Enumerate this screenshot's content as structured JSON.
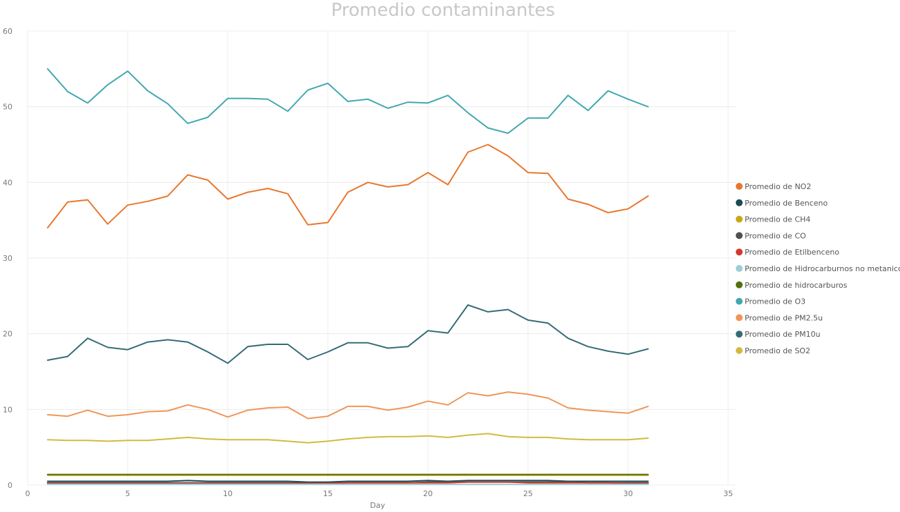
{
  "chart_data": {
    "type": "line",
    "title": "Promedio contaminantes",
    "xlabel": "Day",
    "ylabel": "",
    "xlim": [
      0,
      35
    ],
    "ylim": [
      0,
      60
    ],
    "xticks": [
      0,
      5,
      10,
      15,
      20,
      25,
      30,
      35
    ],
    "yticks": [
      0,
      10,
      20,
      30,
      40,
      50,
      60
    ],
    "grid": true,
    "legend_position": "right",
    "x": [
      1,
      2,
      3,
      4,
      5,
      6,
      7,
      8,
      9,
      10,
      11,
      12,
      13,
      14,
      15,
      16,
      17,
      18,
      19,
      20,
      21,
      22,
      23,
      24,
      25,
      26,
      27,
      28,
      29,
      30,
      31
    ],
    "series": [
      {
        "name": "Promedio de NO2",
        "color": "#E8772E",
        "values": [
          34.0,
          37.4,
          37.7,
          34.5,
          37.0,
          37.5,
          38.2,
          41.0,
          40.3,
          37.8,
          38.7,
          39.2,
          38.5,
          34.4,
          34.7,
          38.7,
          40.0,
          39.4,
          39.7,
          41.3,
          39.7,
          44.0,
          45.0,
          43.5,
          41.3,
          41.2,
          37.8,
          37.1,
          36.0,
          36.5,
          38.2
        ]
      },
      {
        "name": "Promedio de Benceno",
        "color": "#1A4A55",
        "values": [
          0.5,
          0.5,
          0.5,
          0.5,
          0.5,
          0.5,
          0.5,
          0.6,
          0.5,
          0.5,
          0.5,
          0.5,
          0.5,
          0.4,
          0.4,
          0.5,
          0.5,
          0.5,
          0.5,
          0.6,
          0.5,
          0.6,
          0.6,
          0.6,
          0.6,
          0.6,
          0.5,
          0.5,
          0.5,
          0.5,
          0.5
        ]
      },
      {
        "name": "Promedio de CH4",
        "color": "#C9A714",
        "values": [
          1.3,
          1.3,
          1.3,
          1.3,
          1.3,
          1.3,
          1.3,
          1.3,
          1.3,
          1.3,
          1.3,
          1.3,
          1.3,
          1.3,
          1.3,
          1.3,
          1.3,
          1.3,
          1.3,
          1.3,
          1.3,
          1.3,
          1.3,
          1.3,
          1.3,
          1.3,
          1.3,
          1.3,
          1.3,
          1.3,
          1.3
        ]
      },
      {
        "name": "Promedio de CO",
        "color": "#505050",
        "values": [
          0.3,
          0.3,
          0.3,
          0.3,
          0.3,
          0.3,
          0.3,
          0.3,
          0.3,
          0.3,
          0.3,
          0.3,
          0.3,
          0.3,
          0.3,
          0.3,
          0.3,
          0.3,
          0.3,
          0.4,
          0.4,
          0.4,
          0.4,
          0.4,
          0.4,
          0.4,
          0.4,
          0.3,
          0.3,
          0.3,
          0.3
        ]
      },
      {
        "name": "Promedio de Etilbenceno",
        "color": "#D33A2C",
        "values": [
          0.2,
          0.2,
          0.2,
          0.2,
          0.2,
          0.2,
          0.2,
          0.2,
          0.2,
          0.2,
          0.2,
          0.2,
          0.2,
          0.2,
          0.2,
          0.3,
          0.3,
          0.3,
          0.3,
          0.3,
          0.3,
          0.4,
          0.4,
          0.4,
          0.3,
          0.3,
          0.3,
          0.3,
          0.3,
          0.2,
          0.2
        ]
      },
      {
        "name": "Promedio de Hidrocarburnos no metanicos",
        "color": "#9DCED4",
        "values": [
          0.1,
          0.1,
          0.1,
          0.1,
          0.1,
          0.1,
          0.1,
          0.1,
          0.1,
          0.1,
          0.1,
          0.1,
          0.1,
          0.1,
          0.1,
          0.1,
          0.1,
          0.1,
          0.1,
          0.1,
          0.1,
          0.1,
          0.1,
          0.1,
          0.1,
          0.1,
          0.1,
          0.1,
          0.1,
          0.1,
          0.1
        ]
      },
      {
        "name": "Promedio de hidrocarburos",
        "color": "#566E0E",
        "values": [
          1.4,
          1.4,
          1.4,
          1.4,
          1.4,
          1.4,
          1.4,
          1.4,
          1.4,
          1.4,
          1.4,
          1.4,
          1.4,
          1.4,
          1.4,
          1.4,
          1.4,
          1.4,
          1.4,
          1.4,
          1.4,
          1.4,
          1.4,
          1.4,
          1.4,
          1.4,
          1.4,
          1.4,
          1.4,
          1.4,
          1.4
        ]
      },
      {
        "name": "Promedio de O3",
        "color": "#42A8B0",
        "values": [
          55.0,
          52.0,
          50.5,
          52.9,
          54.7,
          52.1,
          50.4,
          47.8,
          48.6,
          51.1,
          51.1,
          51.0,
          49.4,
          52.2,
          53.1,
          50.7,
          51.0,
          49.8,
          50.6,
          50.5,
          51.5,
          49.2,
          47.2,
          46.5,
          48.5,
          48.5,
          51.5,
          49.5,
          52.1,
          51.0,
          50.0
        ]
      },
      {
        "name": "Promedio de PM2.5u",
        "color": "#F0955A",
        "values": [
          9.3,
          9.1,
          9.9,
          9.1,
          9.3,
          9.7,
          9.8,
          10.6,
          10.0,
          9.0,
          9.9,
          10.2,
          10.3,
          8.8,
          9.1,
          10.4,
          10.4,
          9.9,
          10.3,
          11.1,
          10.6,
          12.2,
          11.8,
          12.3,
          12.0,
          11.5,
          10.2,
          9.9,
          9.7,
          9.5,
          10.4
        ]
      },
      {
        "name": "Promedio de PM10u",
        "color": "#346C76",
        "values": [
          16.5,
          17.0,
          19.4,
          18.2,
          17.9,
          18.9,
          19.2,
          18.9,
          17.6,
          16.1,
          18.3,
          18.6,
          18.6,
          16.6,
          17.6,
          18.8,
          18.8,
          18.1,
          18.3,
          20.4,
          20.1,
          23.8,
          22.9,
          23.2,
          21.8,
          21.4,
          19.4,
          18.3,
          17.7,
          17.3,
          18.0
        ]
      },
      {
        "name": "Promedio de SO2",
        "color": "#D4B93F",
        "values": [
          6.0,
          5.9,
          5.9,
          5.8,
          5.9,
          5.9,
          6.1,
          6.3,
          6.1,
          6.0,
          6.0,
          6.0,
          5.8,
          5.6,
          5.8,
          6.1,
          6.3,
          6.4,
          6.4,
          6.5,
          6.3,
          6.6,
          6.8,
          6.4,
          6.3,
          6.3,
          6.1,
          6.0,
          6.0,
          6.0,
          6.2
        ]
      }
    ]
  }
}
